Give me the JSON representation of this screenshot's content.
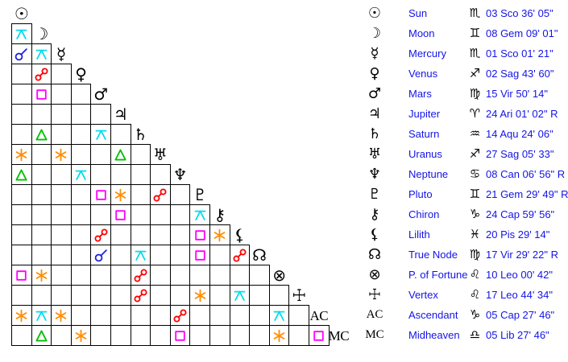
{
  "palette": {
    "background": "#ffffff",
    "grid_line": "#000000",
    "glyph_black": "#000000",
    "text_blue": "#1414e6",
    "aspects": {
      "conjunction": "#2222dd",
      "opposition": "#ff0000",
      "square": "#ff00ff",
      "trine": "#00c000",
      "sextile": "#ff8c00",
      "quincunx": "#00dcee"
    }
  },
  "planets": [
    {
      "id": "sun",
      "glyph": "☉",
      "name": "Sun",
      "sign_glyph": "♏",
      "position": "03 Sco 36' 05\""
    },
    {
      "id": "moon",
      "glyph": "☽",
      "name": "Moon",
      "sign_glyph": "♊",
      "position": "08 Gem 09' 01\""
    },
    {
      "id": "mercury",
      "glyph": "☿",
      "name": "Mercury",
      "sign_glyph": "♏",
      "position": "01 Sco 01' 21\""
    },
    {
      "id": "venus",
      "glyph": "♀",
      "name": "Venus",
      "sign_glyph": "♐",
      "position": "02 Sag 43' 60\""
    },
    {
      "id": "mars",
      "glyph": "♂",
      "name": "Mars",
      "sign_glyph": "♍",
      "position": "15 Vir 50' 14\""
    },
    {
      "id": "jupiter",
      "glyph": "♃",
      "name": "Jupiter",
      "sign_glyph": "♈",
      "position": "24 Ari 01' 02\" R"
    },
    {
      "id": "saturn",
      "glyph": "♄",
      "name": "Saturn",
      "sign_glyph": "♒",
      "position": "14 Aqu 24' 06\""
    },
    {
      "id": "uranus",
      "glyph": "♅",
      "name": "Uranus",
      "sign_glyph": "♐",
      "position": "27 Sag 05' 33\""
    },
    {
      "id": "neptune",
      "glyph": "♆",
      "name": "Neptune",
      "sign_glyph": "♋",
      "position": "08 Can 06' 56\" R"
    },
    {
      "id": "pluto",
      "glyph": "♇",
      "name": "Pluto",
      "sign_glyph": "♊",
      "position": "21 Gem 29' 49\" R"
    },
    {
      "id": "chiron",
      "glyph": "⚷",
      "name": "Chiron",
      "sign_glyph": "♑",
      "position": "24 Cap 59' 56\""
    },
    {
      "id": "lilith",
      "glyph": "⚸",
      "name": "Lilith",
      "sign_glyph": "♓",
      "position": "20 Pis 29' 14\""
    },
    {
      "id": "true-node",
      "glyph": "☊",
      "name": "True Node",
      "sign_glyph": "♍",
      "position": "17 Vir 29' 22\" R"
    },
    {
      "id": "fortune",
      "glyph": "⊗",
      "name": "P. of Fortune",
      "sign_glyph": "♌",
      "position": "10 Leo 00' 42\""
    },
    {
      "id": "vertex",
      "glyph": "☩",
      "name": "Vertex",
      "sign_glyph": "♌",
      "position": "17 Leo 44' 34\""
    },
    {
      "id": "ascendant",
      "glyph": "AC",
      "name": "Ascendant",
      "sign_glyph": "♑",
      "position": "05 Cap 27' 46\""
    },
    {
      "id": "midheaven",
      "glyph": "MC",
      "name": "Midheaven",
      "sign_glyph": "♎",
      "position": "05 Lib 27' 46\""
    }
  ],
  "aspect_grid": {
    "rows": [
      {
        "planet": "sun",
        "cells": []
      },
      {
        "planet": "moon",
        "cells": [
          "quincunx"
        ]
      },
      {
        "planet": "mercury",
        "cells": [
          "conjunction",
          "quincunx"
        ]
      },
      {
        "planet": "venus",
        "cells": [
          null,
          "opposition",
          null
        ]
      },
      {
        "planet": "mars",
        "cells": [
          null,
          "square",
          null,
          null
        ]
      },
      {
        "planet": "jupiter",
        "cells": [
          null,
          null,
          null,
          null,
          null
        ]
      },
      {
        "planet": "saturn",
        "cells": [
          null,
          "trine",
          null,
          null,
          "quincunx",
          null
        ]
      },
      {
        "planet": "uranus",
        "cells": [
          "sextile",
          null,
          "sextile",
          null,
          null,
          "trine",
          null
        ]
      },
      {
        "planet": "neptune",
        "cells": [
          "trine",
          null,
          null,
          "quincunx",
          null,
          null,
          null,
          null
        ]
      },
      {
        "planet": "pluto",
        "cells": [
          null,
          null,
          null,
          null,
          "square",
          "sextile",
          null,
          "opposition",
          null
        ]
      },
      {
        "planet": "chiron",
        "cells": [
          null,
          null,
          null,
          null,
          null,
          "square",
          null,
          null,
          null,
          "quincunx"
        ]
      },
      {
        "planet": "lilith",
        "cells": [
          null,
          null,
          null,
          null,
          "opposition",
          null,
          null,
          null,
          null,
          "square",
          "sextile"
        ]
      },
      {
        "planet": "true-node",
        "cells": [
          null,
          null,
          null,
          null,
          "conjunction",
          null,
          "quincunx",
          null,
          null,
          "square",
          null,
          "opposition"
        ]
      },
      {
        "planet": "fortune",
        "cells": [
          "square",
          "sextile",
          null,
          null,
          null,
          null,
          "opposition",
          null,
          null,
          null,
          null,
          null,
          null
        ]
      },
      {
        "planet": "vertex",
        "cells": [
          null,
          null,
          null,
          null,
          null,
          null,
          "opposition",
          null,
          null,
          "sextile",
          null,
          "quincunx",
          null,
          null
        ]
      },
      {
        "planet": "ascendant",
        "cells": [
          "sextile",
          "quincunx",
          "sextile",
          null,
          null,
          null,
          null,
          null,
          "opposition",
          null,
          null,
          null,
          null,
          "quincunx",
          null
        ]
      },
      {
        "planet": "midheaven",
        "cells": [
          null,
          "trine",
          null,
          "sextile",
          null,
          null,
          null,
          null,
          "square",
          null,
          null,
          null,
          null,
          "sextile",
          null,
          "square"
        ]
      }
    ]
  }
}
